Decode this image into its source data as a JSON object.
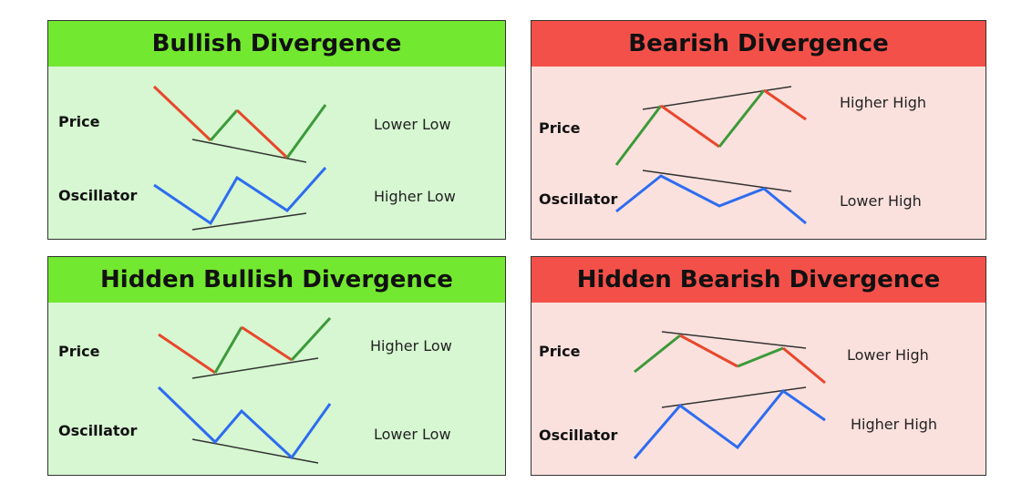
{
  "colors": {
    "bull_head": "#73e830",
    "bull_body": "#d6f7d1",
    "bear_head": "#f4504a",
    "bear_body": "#fbe1dd",
    "up_line": "#3c9a3a",
    "down_line": "#e8472c",
    "osc_line": "#2d6cf0",
    "trend_line": "#333333"
  },
  "panels": {
    "bullish": {
      "title": "Bullish Divergence",
      "price_label": "Price",
      "oscillator_label": "Oscillator",
      "price_caption": "Lower Low",
      "oscillator_caption": "Higher Low"
    },
    "bearish": {
      "title": "Bearish Divergence",
      "price_label": "Price",
      "oscillator_label": "Oscillator",
      "price_caption": "Higher High",
      "oscillator_caption": "Lower High"
    },
    "hidden_bullish": {
      "title": "Hidden Bullish Divergence",
      "price_label": "Price",
      "oscillator_label": "Oscillator",
      "price_caption": "Higher Low",
      "oscillator_caption": "Lower Low"
    },
    "hidden_bearish": {
      "title": "Hidden Bearish Divergence",
      "price_label": "Price",
      "oscillator_label": "Oscillator",
      "price_caption": "Lower High",
      "oscillator_caption": "Higher High"
    }
  }
}
